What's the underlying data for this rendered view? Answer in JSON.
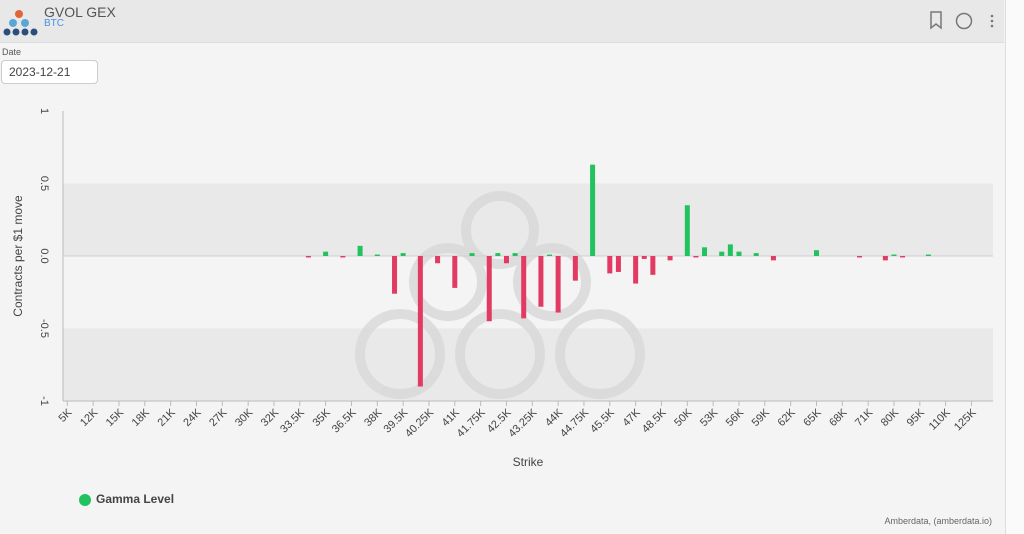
{
  "header": {
    "title": "GVOL GEX",
    "subtitle": "BTC"
  },
  "controls": {
    "date_label": "Date",
    "date": "2023-12-21"
  },
  "footer": {
    "credit": "Amberdata, (amberdata.io)"
  },
  "chart_data": {
    "type": "bar",
    "x_label": "Strike",
    "y_label": "Contracts per $1 move",
    "ylim": [
      -1,
      1
    ],
    "yticks": [
      -1,
      -0.5,
      {
        "value": 0,
        "label": "0.0"
      },
      0.5,
      1
    ],
    "categories": [
      "5K",
      null,
      null,
      "12K",
      null,
      null,
      "15K",
      null,
      null,
      "18K",
      null,
      null,
      "21K",
      null,
      null,
      "24K",
      null,
      null,
      "27K",
      null,
      null,
      "30K",
      null,
      null,
      "32K",
      null,
      null,
      "33.5K",
      null,
      null,
      "35K",
      null,
      null,
      "36.5K",
      null,
      null,
      "38K",
      null,
      null,
      "39.5K",
      null,
      null,
      "40.25K",
      null,
      null,
      "41K",
      null,
      null,
      "41.75K",
      null,
      null,
      "42.5K",
      null,
      null,
      "43.25K",
      null,
      null,
      "44K",
      null,
      null,
      "44.75K",
      null,
      null,
      "45.5K",
      null,
      null,
      "47K",
      null,
      null,
      "48.5K",
      null,
      null,
      "50K",
      null,
      null,
      "53K",
      null,
      null,
      "56K",
      null,
      null,
      "59K",
      null,
      null,
      "62K",
      null,
      null,
      "65K",
      null,
      null,
      "68K",
      null,
      null,
      "71K",
      null,
      null,
      "80K",
      null,
      null,
      "95K",
      null,
      null,
      "110K",
      null,
      null,
      "125K",
      null,
      null
    ],
    "series": [
      {
        "name": "Gamma Level",
        "color": "#22c25e",
        "negative_color": "#e23a62",
        "values": [
          null,
          null,
          null,
          null,
          null,
          null,
          null,
          null,
          null,
          null,
          null,
          null,
          null,
          null,
          null,
          null,
          null,
          null,
          null,
          null,
          null,
          null,
          null,
          null,
          null,
          null,
          null,
          null,
          -0.01,
          null,
          0.03,
          null,
          -0.01,
          null,
          0.07,
          null,
          0.01,
          null,
          -0.26,
          0.02,
          null,
          -0.9,
          null,
          -0.05,
          null,
          -0.22,
          null,
          0.02,
          null,
          -0.45,
          0.02,
          -0.05,
          0.02,
          -0.43,
          null,
          -0.35,
          0.01,
          -0.39,
          null,
          -0.17,
          null,
          0.63,
          null,
          -0.12,
          -0.11,
          null,
          -0.19,
          -0.02,
          -0.13,
          null,
          -0.03,
          null,
          0.35,
          -0.01,
          0.06,
          null,
          0.03,
          0.08,
          0.03,
          null,
          0.02,
          null,
          -0.03,
          null,
          null,
          null,
          null,
          0.04,
          null,
          null,
          null,
          null,
          -0.01,
          null,
          null,
          -0.03,
          0.01,
          -0.01,
          null,
          null,
          0.01,
          null,
          null,
          null,
          null,
          null,
          null,
          null
        ]
      }
    ]
  }
}
